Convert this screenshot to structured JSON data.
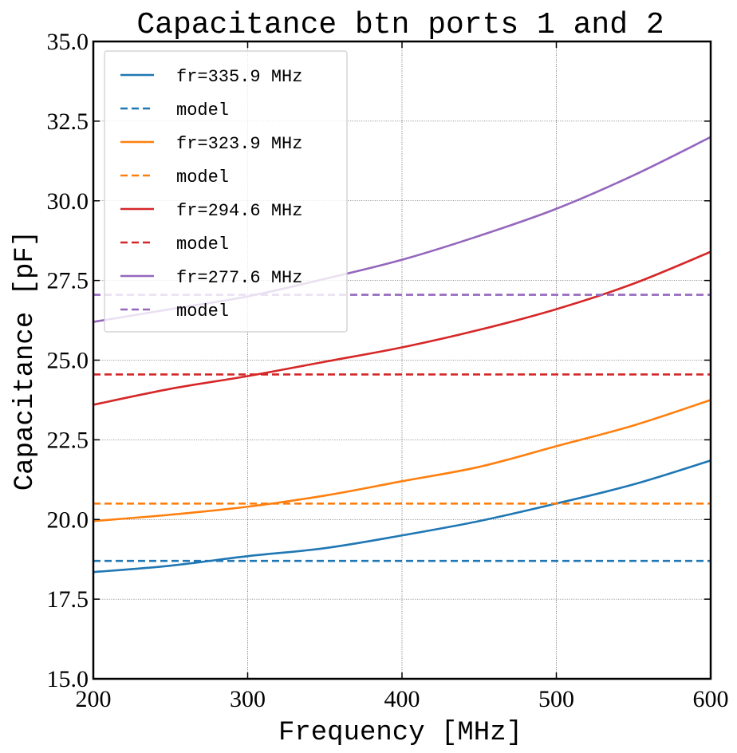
{
  "chart_data": {
    "type": "line",
    "title": "Capacitance btn ports 1 and 2",
    "xlabel": "Frequency [MHz]",
    "ylabel": "Capacitance [pF]",
    "xlim": [
      200,
      600
    ],
    "ylim": [
      15.0,
      35.0
    ],
    "xticks": [
      200,
      300,
      400,
      500,
      600
    ],
    "xtick_labels": [
      "200",
      "300",
      "400",
      "500",
      "600"
    ],
    "yticks": [
      15.0,
      17.5,
      20.0,
      22.5,
      25.0,
      27.5,
      30.0,
      32.5,
      35.0
    ],
    "ytick_labels": [
      "15.0",
      "17.5",
      "20.0",
      "22.5",
      "25.0",
      "27.5",
      "30.0",
      "32.5",
      "35.0"
    ],
    "grid": true,
    "legend_position": "top-left",
    "series": [
      {
        "name": "fr=335.9 MHz",
        "style": "solid",
        "color": "#1f77b4",
        "x": [
          200,
          250,
          300,
          350,
          400,
          450,
          500,
          550,
          600
        ],
        "y": [
          18.35,
          18.55,
          18.85,
          19.1,
          19.5,
          19.95,
          20.5,
          21.1,
          21.85
        ]
      },
      {
        "name": "model",
        "style": "dashed",
        "color": "#1f77b4",
        "x": [
          200,
          600
        ],
        "y": [
          18.7,
          18.7
        ]
      },
      {
        "name": "fr=323.9 MHz",
        "style": "solid",
        "color": "#ff7f0e",
        "x": [
          200,
          250,
          300,
          350,
          400,
          450,
          500,
          550,
          600
        ],
        "y": [
          19.95,
          20.15,
          20.4,
          20.75,
          21.2,
          21.65,
          22.3,
          22.95,
          23.75
        ]
      },
      {
        "name": "model",
        "style": "dashed",
        "color": "#ff7f0e",
        "x": [
          200,
          600
        ],
        "y": [
          20.5,
          20.5
        ]
      },
      {
        "name": "fr=294.6 MHz",
        "style": "solid",
        "color": "#d62728",
        "x": [
          200,
          250,
          300,
          350,
          400,
          450,
          500,
          550,
          600
        ],
        "y": [
          23.6,
          24.1,
          24.5,
          24.95,
          25.4,
          25.95,
          26.6,
          27.4,
          28.4
        ]
      },
      {
        "name": "model",
        "style": "dashed",
        "color": "#d62728",
        "x": [
          200,
          600
        ],
        "y": [
          24.55,
          24.55
        ]
      },
      {
        "name": "fr=277.6 MHz",
        "style": "solid",
        "color": "#9467bd",
        "x": [
          200,
          250,
          300,
          350,
          400,
          450,
          500,
          550,
          600
        ],
        "y": [
          26.2,
          26.6,
          27.0,
          27.55,
          28.15,
          28.9,
          29.75,
          30.8,
          32.0
        ]
      },
      {
        "name": "model",
        "style": "dashed",
        "color": "#9467bd",
        "x": [
          200,
          600
        ],
        "y": [
          27.05,
          27.05
        ]
      }
    ]
  }
}
